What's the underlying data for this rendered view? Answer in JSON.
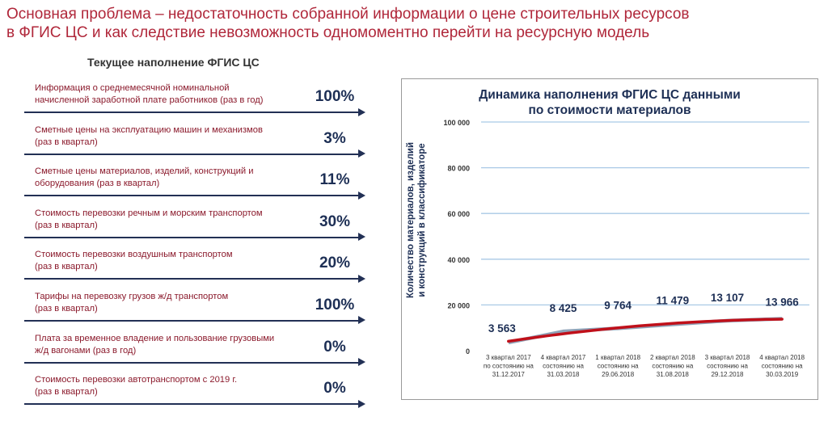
{
  "title": {
    "line1": "Основная проблема – недостаточность собранной информации о цене строительных ресурсов",
    "line2": "в ФГИС ЦС и как следствие невозможность  одномоментно перейти на ресурсную модель"
  },
  "left_panel": {
    "heading": "Текущее наполнение ФГИС ЦС",
    "items": [
      {
        "line1": "Информация о среднемесячной номинальной",
        "line2": "начисленной заработной плате работников (раз в год)",
        "value": "100%"
      },
      {
        "line1": "Сметные цены на эксплуатацию машин и механизмов",
        "line2": "(раз в квартал)",
        "value": "3%"
      },
      {
        "line1": "Сметные цены материалов, изделий, конструкций и",
        "line2": "оборудования (раз в квартал)",
        "value": "11%"
      },
      {
        "line1": "Стоимость  перевозки речным  и морским транспортом",
        "line2": "(раз в квартал)",
        "value": "30%"
      },
      {
        "line1": "Стоимость  перевозки воздушным транспортом",
        "line2": "(раз в квартал)",
        "value": "20%"
      },
      {
        "line1": "Тарифы на перевозку грузов ж/д транспортом",
        "line2": " (раз в квартал)",
        "value": "100%"
      },
      {
        "line1": "Плата за временное владение и пользование грузовыми",
        "line2": "ж/д вагонами (раз в год)",
        "value": "0%"
      },
      {
        "line1": "Стоимость  перевозки автотранспортом с 2019 г.",
        "line2": "(раз в квартал)",
        "value": "0%"
      }
    ]
  },
  "chart_data": {
    "type": "line",
    "title": "Динамика наполнения ФГИС ЦС данными\nпо стоимости материалов",
    "ylabel": "Количество материалов, изделий и конструкций в классификаторе",
    "xlabel": "",
    "ylim": [
      0,
      100000
    ],
    "yticks": [
      0,
      20000,
      40000,
      60000,
      80000,
      100000
    ],
    "ytick_labels": [
      "0",
      "20 000",
      "40 000",
      "60 000",
      "80 000",
      "100 000"
    ],
    "categories": [
      "3 квартал 2017 по состоянию на 31.12.2017",
      "4 квартал 2017 состоянию на 31.03.2018",
      "1 квартал 2018 состоянию на 29.06.2018",
      "2 квартал 2018 состоянию на 31.08.2018",
      "3 квартал 2018 состоянию на 29.12.2018",
      "4 квартал 2018 состоянию на 30.03.2019"
    ],
    "category_lines": [
      [
        "3 квартал 2017",
        "по состоянию на",
        "31.12.2017"
      ],
      [
        "4 квартал 2017",
        "состоянию на",
        "31.03.2018"
      ],
      [
        "1 квартал 2018",
        "состоянию на",
        "29.06.2018"
      ],
      [
        "2 квартал 2018",
        "состоянию на",
        "31.08.2018"
      ],
      [
        "3 квартал 2018",
        "состоянию на",
        "29.12.2018"
      ],
      [
        "4 квартал 2018",
        "состоянию на",
        "30.03.2019"
      ]
    ],
    "values": [
      3563,
      8425,
      9764,
      11479,
      13107,
      13966
    ],
    "value_labels": [
      "3 563",
      "8 425",
      "9 764",
      "11 479",
      "13 107",
      "13 966"
    ],
    "trend_color": "#c0101a",
    "series_color": "#8fa3b8",
    "grid": true,
    "grid_color": "#a9c9e6"
  }
}
